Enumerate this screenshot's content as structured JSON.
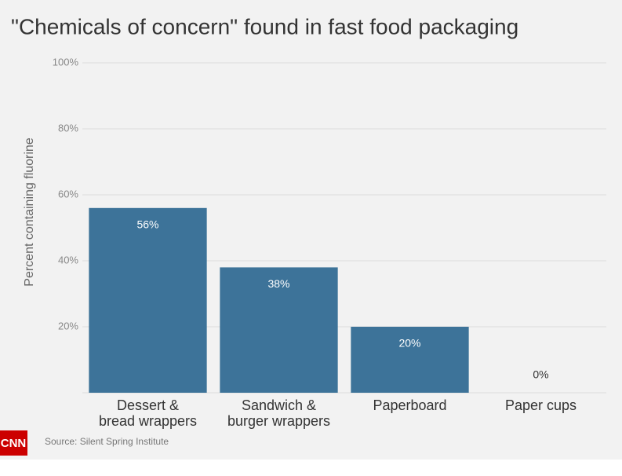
{
  "chart_data": {
    "type": "bar",
    "title": "\"Chemicals of concern\" found in fast food packaging",
    "y_label": "Percent containing fluorine",
    "categories": [
      "Dessert &\nbread wrappers",
      "Sandwich &\nburger wrappers",
      "Paperboard",
      "Paper cups"
    ],
    "values": [
      56,
      38,
      20,
      0
    ],
    "value_labels": [
      "56%",
      "38%",
      "20%",
      "0%"
    ],
    "color": "#3d7399",
    "ylim": [
      0,
      100
    ],
    "yticks": [
      {
        "value": 20,
        "label": "20%"
      },
      {
        "value": 40,
        "label": "40%"
      },
      {
        "value": 60,
        "label": "60%"
      },
      {
        "value": 80,
        "label": "80%"
      },
      {
        "value": 100,
        "label": "100%"
      }
    ],
    "grid": true,
    "source": "Source: Silent Spring Institute",
    "logo": "CNN"
  }
}
